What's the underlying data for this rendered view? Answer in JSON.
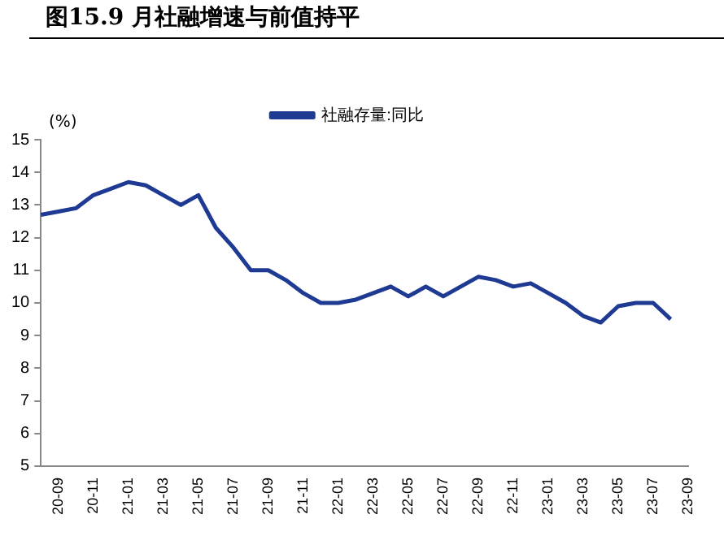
{
  "chart_data": {
    "type": "line",
    "title": "图15.9 月社融增速与前值持平",
    "ylabel": "(%)",
    "categories": [
      null,
      "20-09",
      null,
      "20-11",
      null,
      "21-01",
      null,
      "21-03",
      null,
      "21-05",
      null,
      "21-07",
      null,
      "21-09",
      null,
      "21-11",
      null,
      "22-01",
      null,
      "22-03",
      null,
      "22-05",
      null,
      "22-07",
      null,
      "22-09",
      null,
      "22-11",
      null,
      "23-01",
      null,
      "23-03",
      null,
      "23-05",
      null,
      "23-07",
      null,
      "23-09"
    ],
    "series": [
      {
        "name": "社融存量:同比",
        "color": "#1f3a93",
        "values": [
          12.7,
          12.8,
          12.9,
          13.3,
          13.5,
          13.7,
          13.6,
          13.3,
          13.0,
          13.3,
          12.3,
          11.7,
          11.0,
          11.0,
          10.7,
          10.3,
          10.0,
          10.0,
          10.1,
          10.3,
          10.5,
          10.2,
          10.5,
          10.2,
          10.5,
          10.8,
          10.7,
          10.5,
          10.6,
          10.3,
          10.0,
          9.6,
          9.4,
          9.9,
          10.0,
          10.0,
          9.5,
          null
        ]
      }
    ],
    "ylim": [
      5,
      15
    ],
    "yticks": [
      5,
      6,
      7,
      8,
      9,
      10,
      11,
      12,
      13,
      14,
      15
    ],
    "grid": false,
    "legend": "top right",
    "marker": "none",
    "line_style": "solid"
  }
}
